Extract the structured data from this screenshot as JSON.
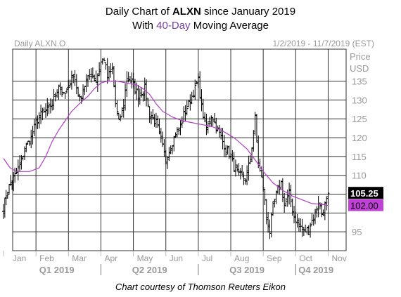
{
  "header": {
    "pre": "Daily Chart of ",
    "ticker": "ALXN",
    "post": " since January 2019",
    "line2_pre": "With ",
    "ma_label": "40-Day",
    "line2_post": " Moving Average"
  },
  "caption": "Chart courtesy of Thomson Reuters Eikon",
  "chart_data": {
    "type": "ohlc",
    "symbol_label": "Daily ALXN.O",
    "range_label": "1/2/2019 - 11/7/2019 (EST)",
    "ylabel": "Price USD",
    "ylabel_lines": [
      "Price",
      "USD"
    ],
    "ylim": [
      90,
      143.5
    ],
    "yticks": [
      95,
      100,
      105,
      110,
      115,
      120,
      125,
      130,
      135
    ],
    "grid": true,
    "xlim_months": [
      0,
      10.25
    ],
    "month_labels": [
      "Jan",
      "Feb",
      "Mar",
      "Apr",
      "May",
      "Jun",
      "Jul",
      "Aug",
      "Sep",
      "Oct",
      "Nov"
    ],
    "quarter_labels": [
      "Q1 2019",
      "Q2 2019",
      "Q3 2019",
      "Q4 2019"
    ],
    "last_price": "105.25",
    "ma_value": "102.00",
    "colors": {
      "price": "#000000",
      "ma": "#b23fc6",
      "ma_badge": "#c040d8",
      "grid": "#333333",
      "axis_text": "#999999",
      "last_badge": "#000000"
    },
    "series": [
      {
        "name": "ALXN",
        "style": "ohlc-bars",
        "anchor_points_month_close": [
          [
            0.0,
            101
          ],
          [
            0.08,
            105
          ],
          [
            0.22,
            108
          ],
          [
            0.35,
            110
          ],
          [
            0.5,
            113
          ],
          [
            0.7,
            118
          ],
          [
            0.85,
            120
          ],
          [
            1.0,
            124
          ],
          [
            1.15,
            126
          ],
          [
            1.3,
            127
          ],
          [
            1.5,
            129
          ],
          [
            1.7,
            134
          ],
          [
            1.85,
            131
          ],
          [
            2.0,
            133
          ],
          [
            2.1,
            137
          ],
          [
            2.2,
            135
          ],
          [
            2.35,
            130
          ],
          [
            2.5,
            134
          ],
          [
            2.7,
            137
          ],
          [
            2.85,
            135
          ],
          [
            3.0,
            140
          ],
          [
            3.1,
            141
          ],
          [
            3.2,
            136
          ],
          [
            3.35,
            138
          ],
          [
            3.45,
            129
          ],
          [
            3.55,
            124
          ],
          [
            3.7,
            129
          ],
          [
            3.8,
            136
          ],
          [
            3.95,
            135
          ],
          [
            4.15,
            131
          ],
          [
            4.35,
            133
          ],
          [
            4.5,
            126
          ],
          [
            4.7,
            124
          ],
          [
            4.85,
            119
          ],
          [
            5.0,
            114
          ],
          [
            5.15,
            118
          ],
          [
            5.3,
            121
          ],
          [
            5.45,
            123
          ],
          [
            5.55,
            126
          ],
          [
            5.7,
            129
          ],
          [
            5.85,
            132
          ],
          [
            6.0,
            135
          ],
          [
            6.1,
            128
          ],
          [
            6.25,
            122
          ],
          [
            6.4,
            126
          ],
          [
            6.55,
            123
          ],
          [
            6.7,
            120
          ],
          [
            6.85,
            117
          ],
          [
            7.0,
            115
          ],
          [
            7.1,
            112
          ],
          [
            7.25,
            110
          ],
          [
            7.45,
            109
          ],
          [
            7.6,
            114
          ],
          [
            7.75,
            125
          ],
          [
            7.85,
            113
          ],
          [
            8.0,
            107
          ],
          [
            8.1,
            99
          ],
          [
            8.2,
            95
          ],
          [
            8.3,
            102
          ],
          [
            8.45,
            106
          ],
          [
            8.55,
            108
          ],
          [
            8.65,
            102
          ],
          [
            8.8,
            105
          ],
          [
            8.95,
            99
          ],
          [
            9.1,
            97
          ],
          [
            9.25,
            95
          ],
          [
            9.4,
            96
          ],
          [
            9.55,
            99
          ],
          [
            9.7,
            103
          ],
          [
            9.8,
            100
          ],
          [
            9.9,
            102
          ],
          [
            10.0,
            105.25
          ]
        ]
      },
      {
        "name": "40-Day Moving Average",
        "style": "line",
        "points_month_value": [
          [
            0.0,
            114.5
          ],
          [
            0.2,
            112
          ],
          [
            0.4,
            111
          ],
          [
            0.8,
            111
          ],
          [
            1.1,
            112
          ],
          [
            1.3,
            115
          ],
          [
            1.5,
            119
          ],
          [
            1.7,
            122
          ],
          [
            1.9,
            124.5
          ],
          [
            2.1,
            127
          ],
          [
            2.4,
            129.5
          ],
          [
            2.6,
            131
          ],
          [
            2.8,
            133
          ],
          [
            3.0,
            134.5
          ],
          [
            3.2,
            135
          ],
          [
            3.5,
            135
          ],
          [
            3.8,
            134.5
          ],
          [
            4.1,
            134
          ],
          [
            4.3,
            133
          ],
          [
            4.5,
            131.5
          ],
          [
            4.7,
            129
          ],
          [
            4.9,
            127
          ],
          [
            5.2,
            125.5
          ],
          [
            5.5,
            124.5
          ],
          [
            5.8,
            124
          ],
          [
            6.1,
            123.5
          ],
          [
            6.4,
            123
          ],
          [
            6.7,
            122
          ],
          [
            6.9,
            121
          ],
          [
            7.1,
            120
          ],
          [
            7.3,
            118.5
          ],
          [
            7.5,
            117
          ],
          [
            7.8,
            113.5
          ],
          [
            8.0,
            111
          ],
          [
            8.3,
            108
          ],
          [
            8.6,
            106
          ],
          [
            8.9,
            104.5
          ],
          [
            9.2,
            103.5
          ],
          [
            9.5,
            102.5
          ],
          [
            9.8,
            102.3
          ],
          [
            10.0,
            102
          ]
        ]
      }
    ]
  }
}
